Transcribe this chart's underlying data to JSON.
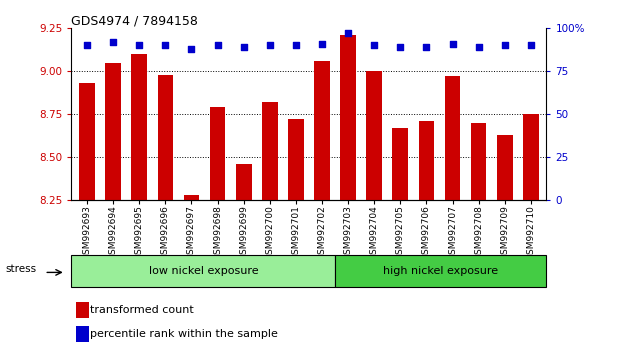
{
  "title": "GDS4974 / 7894158",
  "samples": [
    "GSM992693",
    "GSM992694",
    "GSM992695",
    "GSM992696",
    "GSM992697",
    "GSM992698",
    "GSM992699",
    "GSM992700",
    "GSM992701",
    "GSM992702",
    "GSM992703",
    "GSM992704",
    "GSM992705",
    "GSM992706",
    "GSM992707",
    "GSM992708",
    "GSM992709",
    "GSM992710"
  ],
  "transformed_count": [
    8.93,
    9.05,
    9.1,
    8.98,
    8.28,
    8.79,
    8.46,
    8.82,
    8.72,
    9.06,
    9.21,
    9.0,
    8.67,
    8.71,
    8.97,
    8.7,
    8.63,
    8.75
  ],
  "percentile_rank": [
    90,
    92,
    90,
    90,
    88,
    90,
    89,
    90,
    90,
    91,
    97,
    90,
    89,
    89,
    91,
    89,
    90,
    90
  ],
  "ylim_left": [
    8.25,
    9.25
  ],
  "ylim_right": [
    0,
    100
  ],
  "yticks_left": [
    8.25,
    8.5,
    8.75,
    9.0,
    9.25
  ],
  "yticks_right": [
    0,
    25,
    50,
    75,
    100
  ],
  "bar_color": "#cc0000",
  "dot_color": "#0000cc",
  "group_labels": [
    "low nickel exposure",
    "high nickel exposure"
  ],
  "group_colors_low": "#99ee99",
  "group_colors_high": "#44cc44",
  "low_count": 10,
  "high_count": 8,
  "stress_label": "stress",
  "legend_bar_label": "transformed count",
  "legend_dot_label": "percentile rank within the sample",
  "bg_color": "#ffffff",
  "plot_bg": "#ffffff",
  "tick_label_color_left": "#cc0000",
  "tick_label_color_right": "#0000cc",
  "grid_yticks": [
    8.5,
    8.75,
    9.0
  ]
}
